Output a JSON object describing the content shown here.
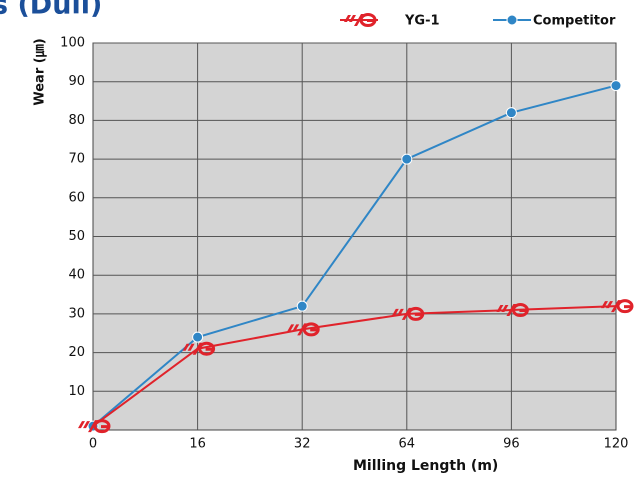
{
  "chart_data": {
    "type": "line",
    "title": "s (Dull)",
    "x_label": "Milling Length (m)",
    "y_label": "Wear (㎛)",
    "categories": [
      "0",
      "16",
      "32",
      "64",
      "96",
      "120"
    ],
    "series": [
      {
        "name": "YG-1",
        "color": "#e0232b",
        "marker": "logo",
        "values": [
          1,
          21,
          26,
          30,
          31,
          32
        ]
      },
      {
        "name": "Competitor",
        "color": "#2f86c6",
        "marker": "circle",
        "values": [
          1,
          24,
          32,
          70,
          82,
          89
        ]
      }
    ],
    "ylim": [
      0,
      100
    ],
    "yticks": [
      10,
      20,
      30,
      40,
      50,
      60,
      70,
      80,
      90,
      100
    ],
    "grid": true
  }
}
